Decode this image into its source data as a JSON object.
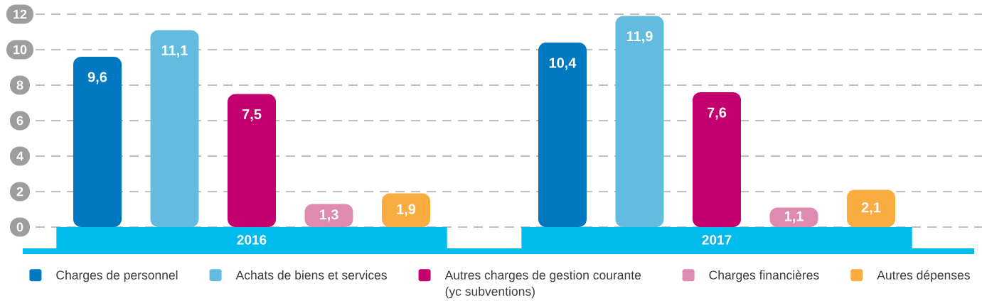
{
  "chart_data": {
    "type": "bar",
    "categories": [
      "2016",
      "2017"
    ],
    "series": [
      {
        "name": "Charges de personnel",
        "color": "#0079c1",
        "values": [
          9.6,
          10.4
        ],
        "value_labels": [
          "9,6",
          "10,4"
        ]
      },
      {
        "name": "Achats de biens et services",
        "color": "#63bbe0",
        "values": [
          11.1,
          11.9
        ],
        "value_labels": [
          "11,1",
          "11,9"
        ]
      },
      {
        "name": "Autres charges de gestion courante (yc subventions)",
        "color": "#c4006f",
        "values": [
          7.5,
          7.6
        ],
        "value_labels": [
          "7,5",
          "7,6"
        ]
      },
      {
        "name": "Charges financières",
        "color": "#de8ab1",
        "values": [
          1.3,
          1.1
        ],
        "value_labels": [
          "1,3",
          "1,1"
        ]
      },
      {
        "name": "Autres dépenses",
        "color": "#f9ad40",
        "values": [
          1.9,
          2.1
        ],
        "value_labels": [
          "1,9",
          "2,1"
        ]
      }
    ],
    "ylim": [
      0,
      12
    ],
    "yticks": [
      0,
      2,
      4,
      6,
      8,
      10,
      12
    ],
    "grid": "y",
    "legend": "bottom"
  }
}
